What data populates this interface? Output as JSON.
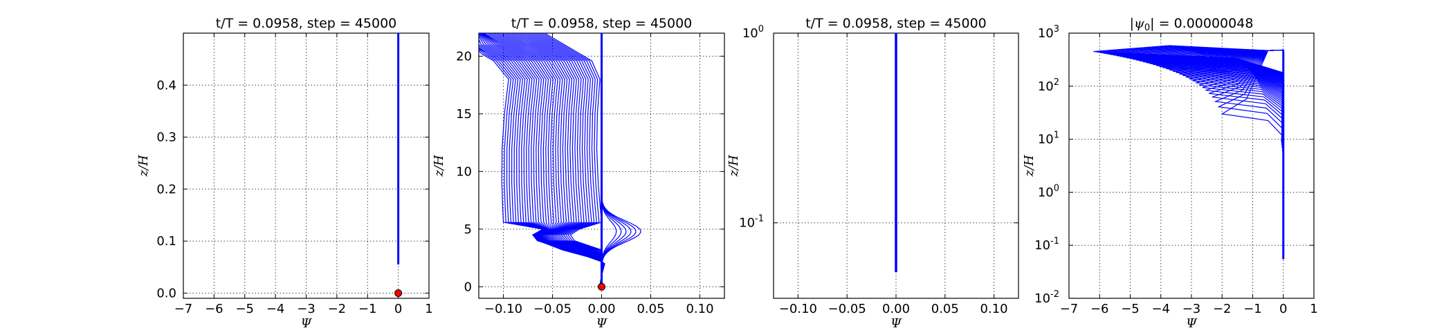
{
  "figure": {
    "description_title": "Four-panel profile plot"
  },
  "chart_data": [
    {
      "type": "line",
      "title": "t/T = 0.0958, step = 45000",
      "xlabel": "Ψ",
      "ylabel": "z/H",
      "xscale": "linear",
      "yscale": "linear",
      "xlim": [
        -7,
        1
      ],
      "ylim": [
        -0.01,
        0.5
      ],
      "xticks": [
        -7,
        -6,
        -5,
        -4,
        -3,
        -2,
        -1,
        0,
        1
      ],
      "xtick_labels": [
        "−7",
        "−6",
        "−5",
        "−4",
        "−3",
        "−2",
        "−1",
        "0",
        "1"
      ],
      "yticks": [
        0.0,
        0.1,
        0.2,
        0.3,
        0.4
      ],
      "ytick_labels": [
        "0.0",
        "0.1",
        "0.2",
        "0.3",
        "0.4"
      ],
      "grid": true,
      "line_color": "#0000ff",
      "marker_color": "#ff0000",
      "series": [
        {
          "name": "profile",
          "x": [
            0,
            0
          ],
          "y": [
            0.055,
            0.5
          ]
        }
      ],
      "marker": {
        "x": 0,
        "y": 0
      }
    },
    {
      "type": "line",
      "title": "t/T = 0.0958, step = 45000",
      "xlabel": "Ψ",
      "ylabel": "z/H",
      "xscale": "linear",
      "yscale": "linear",
      "xlim": [
        -0.125,
        0.125
      ],
      "ylim": [
        -1,
        22
      ],
      "xticks": [
        -0.1,
        -0.05,
        0.0,
        0.05,
        0.1
      ],
      "xtick_labels": [
        "−0.10",
        "−0.05",
        "0.00",
        "0.05",
        "0.10"
      ],
      "yticks": [
        0,
        5,
        10,
        15,
        20
      ],
      "ytick_labels": [
        "0",
        "5",
        "10",
        "15",
        "20"
      ],
      "grid": true,
      "line_color": "#0000ff",
      "marker_color": "#ff0000",
      "curve_count": 40,
      "marker": {
        "x": 0,
        "y": 0
      }
    },
    {
      "type": "line",
      "title": "t/T = 0.0958, step = 45000",
      "xlabel": "Ψ",
      "ylabel": "z/H",
      "xscale": "linear",
      "yscale": "log",
      "xlim": [
        -0.125,
        0.125
      ],
      "ylim": [
        0.04,
        1
      ],
      "xticks": [
        -0.1,
        -0.05,
        0.0,
        0.05,
        0.1
      ],
      "xtick_labels": [
        "−0.10",
        "−0.05",
        "0.00",
        "0.05",
        "0.10"
      ],
      "yticks": [
        0.1,
        1
      ],
      "ytick_labels": [
        [
          "10",
          "-1"
        ],
        [
          "10",
          "0"
        ]
      ],
      "grid": true,
      "line_color": "#0000ff",
      "series": [
        {
          "name": "profile",
          "x": [
            0,
            0
          ],
          "y": [
            0.055,
            1
          ]
        }
      ]
    },
    {
      "type": "line",
      "title": "|ψ₀| = 0.00000048",
      "title_parts": [
        "|ψ",
        "0",
        "| = 0.00000048"
      ],
      "xlabel": "Ψ",
      "ylabel": "z/H",
      "xscale": "linear",
      "yscale": "log",
      "xlim": [
        -7,
        1
      ],
      "ylim": [
        0.01,
        1000
      ],
      "xticks": [
        -7,
        -6,
        -5,
        -4,
        -3,
        -2,
        -1,
        0,
        1
      ],
      "xtick_labels": [
        "−7",
        "−6",
        "−5",
        "−4",
        "−3",
        "−2",
        "−1",
        "0",
        "1"
      ],
      "yticks": [
        0.01,
        0.1,
        1,
        10,
        100,
        1000
      ],
      "ytick_labels": [
        [
          "10",
          "-2"
        ],
        [
          "10",
          "-1"
        ],
        [
          "10",
          "0"
        ],
        [
          "10",
          "1"
        ],
        [
          "10",
          "2"
        ],
        [
          "10",
          "3"
        ]
      ],
      "grid": true,
      "line_color": "#0000ff",
      "curve_count": 40
    }
  ]
}
